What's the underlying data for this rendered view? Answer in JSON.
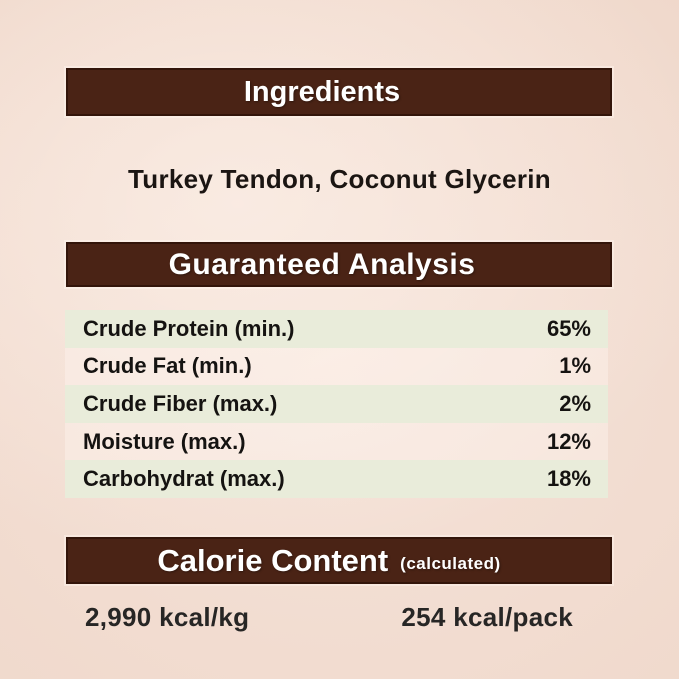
{
  "page": {
    "background_color": "#f0d9cc",
    "accent_brown": "#4a2315",
    "row_green": "#e9ecda"
  },
  "ingredients": {
    "header": "Ingredients",
    "text": "Turkey Tendon, Coconut Glycerin"
  },
  "guaranteed_analysis": {
    "header": "Guaranteed Analysis",
    "rows": [
      {
        "label": "Crude Protein (min.)",
        "value": "65%"
      },
      {
        "label": "Crude Fat (min.)",
        "value": "1%"
      },
      {
        "label": "Crude Fiber (max.)",
        "value": "2%"
      },
      {
        "label": "Moisture (max.)",
        "value": "12%"
      },
      {
        "label": "Carbohydrat (max.)",
        "value": "18%"
      }
    ]
  },
  "calorie_content": {
    "header": "Calorie Content",
    "header_suffix": "(calculated)",
    "per_kg": "2,990 kcal/kg",
    "per_pack": "254 kcal/pack"
  }
}
